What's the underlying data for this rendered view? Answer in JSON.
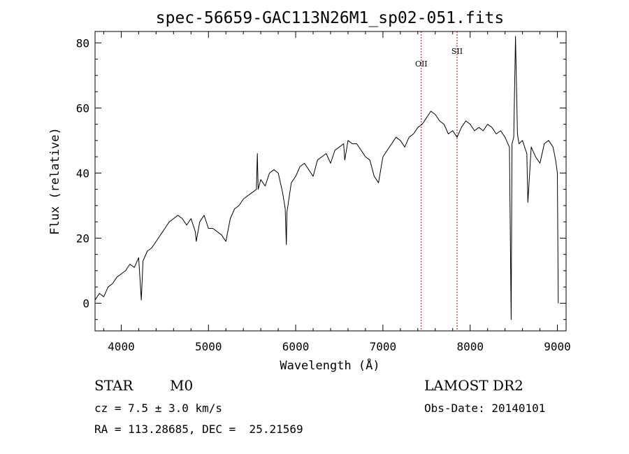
{
  "chart_data": {
    "type": "line",
    "title": "spec-56659-GAC113N26M1_sp02-051.fits",
    "xlabel": "Wavelength (Å)",
    "ylabel": "Flux (relative)",
    "xlim": [
      3700,
      9100
    ],
    "ylim": [
      -8.5,
      83.5
    ],
    "xticks": [
      "4000",
      "5000",
      "6000",
      "7000",
      "8000",
      "9000"
    ],
    "xtick_values": [
      4000,
      5000,
      6000,
      7000,
      8000,
      9000
    ],
    "yticks": [
      "0",
      "20",
      "40",
      "60",
      "80"
    ],
    "ytick_values": [
      0,
      20,
      40,
      60,
      80
    ],
    "grid": false,
    "series": [
      {
        "color": "#000000",
        "x": [
          3700,
          3750,
          3800,
          3850,
          3900,
          3950,
          4000,
          4050,
          4100,
          4150,
          4200,
          4230,
          4250,
          4300,
          4350,
          4400,
          4450,
          4500,
          4550,
          4600,
          4650,
          4700,
          4750,
          4800,
          4850,
          4860,
          4900,
          4950,
          5000,
          5050,
          5100,
          5150,
          5200,
          5250,
          5300,
          5350,
          5400,
          5450,
          5500,
          5550,
          5560,
          5570,
          5600,
          5650,
          5700,
          5750,
          5800,
          5850,
          5880,
          5893,
          5900,
          5950,
          6000,
          6050,
          6100,
          6150,
          6200,
          6250,
          6300,
          6350,
          6400,
          6450,
          6500,
          6550,
          6563,
          6600,
          6650,
          6700,
          6750,
          6800,
          6850,
          6870,
          6900,
          6950,
          7000,
          7050,
          7100,
          7150,
          7200,
          7250,
          7300,
          7350,
          7400,
          7450,
          7500,
          7550,
          7600,
          7650,
          7700,
          7750,
          7800,
          7850,
          7900,
          7950,
          8000,
          8050,
          8100,
          8150,
          8200,
          8250,
          8300,
          8350,
          8400,
          8450,
          8470,
          8480,
          8500,
          8520,
          8542,
          8560,
          8600,
          8650,
          8662,
          8700,
          8750,
          8800,
          8850,
          8900,
          8950,
          8980,
          9000,
          9010
        ],
        "values": [
          1,
          3,
          2,
          5,
          6,
          8,
          9,
          10,
          12,
          11,
          14,
          1,
          13,
          16,
          17,
          19,
          21,
          23,
          25,
          26,
          27,
          26,
          24,
          26,
          22,
          19,
          25,
          27,
          23,
          23,
          22,
          21,
          19,
          26,
          29,
          30,
          32,
          33,
          34,
          35,
          46,
          35,
          38,
          36,
          40,
          41,
          40,
          34,
          29,
          18,
          28,
          37,
          39,
          42,
          43,
          41,
          39,
          44,
          45,
          46,
          43,
          47,
          48,
          49,
          44,
          50,
          49,
          49,
          47,
          45,
          44,
          42,
          39,
          37,
          45,
          47,
          49,
          51,
          50,
          48,
          51,
          52,
          54,
          55,
          57,
          59,
          58,
          56,
          55,
          52,
          53,
          51,
          54,
          56,
          55,
          53,
          54,
          53,
          55,
          54,
          52,
          53,
          51,
          48,
          -5,
          49,
          51,
          82,
          52,
          49,
          50,
          46,
          31,
          48,
          45,
          43,
          49,
          50,
          48,
          44,
          40,
          0
        ]
      }
    ],
    "annotations": [
      {
        "label": "OII",
        "x": 7440
      },
      {
        "label": "SII",
        "x": 7850
      }
    ],
    "info": {
      "class_type": "STAR",
      "subclass": "M0",
      "survey": "LAMOST DR2",
      "cz": "cz = 7.5 ± 3.0 km/s",
      "obs_date": "Obs-Date: 20140101",
      "coords": "RA = 113.28685, DEC =  25.21569"
    },
    "colors": {
      "spectrum": "#000000",
      "marker_line": "#aa0000",
      "axes": "#000000"
    }
  }
}
